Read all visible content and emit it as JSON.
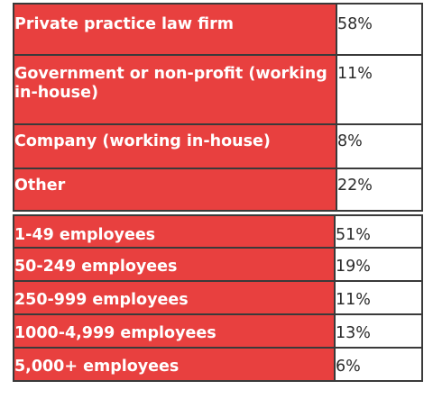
{
  "workplace_table": {
    "rows": [
      {
        "label": "Private practice law firm",
        "value": "58%"
      },
      {
        "label": "Government or non-profit (working in-house)",
        "value": "11%"
      },
      {
        "label": "Company (working in-house)",
        "value": "8%"
      },
      {
        "label": "Other",
        "value": "22%"
      }
    ]
  },
  "employer_size_table": {
    "rows": [
      {
        "label": "1-49 employees",
        "value": "51%"
      },
      {
        "label": "50-249 employees",
        "value": "19%"
      },
      {
        "label": "250-999 employees",
        "value": "11%"
      },
      {
        "label": "1000-4,999 employees",
        "value": "13%"
      },
      {
        "label": "5,000+ employees",
        "value": "6%"
      }
    ]
  },
  "colors": {
    "label_background": "#e8403f",
    "label_text": "#ffffff",
    "value_background": "#ffffff",
    "value_text": "#2b2b2b",
    "border": "#3a3a3a"
  }
}
